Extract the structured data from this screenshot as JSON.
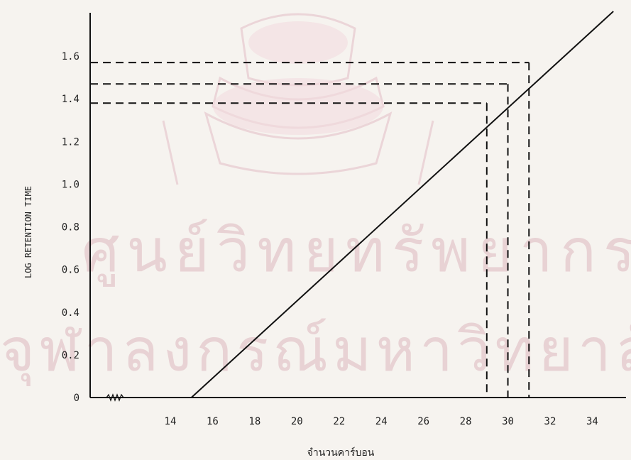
{
  "chart_data": {
    "type": "line",
    "xlabel": "จำนวนคาร์บอน",
    "ylabel": "LOG RETENTION TIME",
    "x_ticks": [
      14,
      16,
      18,
      20,
      22,
      24,
      26,
      28,
      30,
      32,
      34
    ],
    "y_ticks": [
      {
        "value": 0,
        "label": "0"
      },
      {
        "value": 0.2,
        "label": "0.2"
      },
      {
        "value": 0.4,
        "label": "0.4"
      },
      {
        "value": 0.6,
        "label": "0.6"
      },
      {
        "value": 0.8,
        "label": "0.8"
      },
      {
        "value": 1.0,
        "label": "1.0"
      },
      {
        "value": 1.2,
        "label": "1.2"
      },
      {
        "value": 1.4,
        "label": "1.4"
      },
      {
        "value": 1.6,
        "label": "1.6"
      }
    ],
    "xlim": [
      10.2,
      35.6
    ],
    "ylim": [
      0,
      1.83
    ],
    "axis_break": true,
    "grid": false,
    "series": [
      {
        "x": [
          15,
          35
        ],
        "y": [
          0,
          1.81
        ]
      }
    ],
    "reference_points": [
      {
        "x": 29,
        "y": 1.38
      },
      {
        "x": 30,
        "y": 1.47
      },
      {
        "x": 31,
        "y": 1.57
      }
    ],
    "colors": {
      "line": "#111111",
      "watermark": "#d8a8b4"
    }
  },
  "watermark": {
    "line1": "ศูนย์วิทยทรัพยากร",
    "line2": "จุฬาลงกรณ์มหาวิทยาลัย"
  }
}
